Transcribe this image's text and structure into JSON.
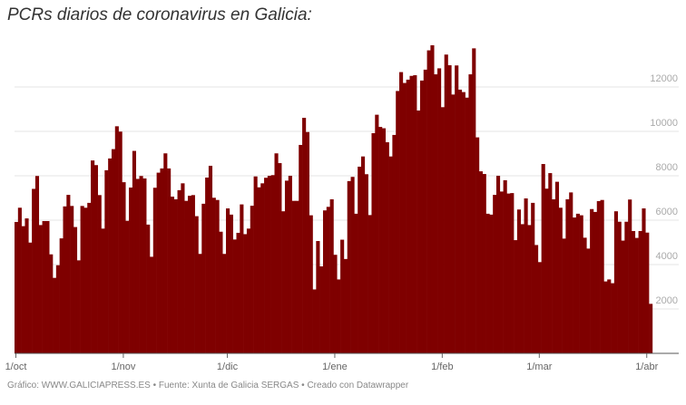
{
  "title": "PCRs diarios de coronavirus en Galicia:",
  "footer": "Gráfico: WWW.GALICIAPRESS.ES • Fuente: Xunta de Galicia SERGAS • Creado con Datawrapper",
  "colors": {
    "bar": "#7f0000",
    "grid": "#e6e6e6",
    "axis": "#666666",
    "ytick": "#aaaaaa"
  },
  "chart_data": {
    "type": "bar",
    "title": "PCRs diarios de coronavirus en Galicia:",
    "xlabel": "",
    "ylabel": "",
    "ylim": [
      0,
      14000
    ],
    "grid": true,
    "y_axis_side": "right",
    "yticks": [
      2000,
      4000,
      6000,
      8000,
      10000,
      12000
    ],
    "xtick_labels": [
      "1/oct",
      "1/nov",
      "1/dic",
      "1/ene",
      "1/feb",
      "1/mar",
      "1/abr"
    ],
    "months": [
      {
        "label": "oct",
        "values": [
          5920,
          6560,
          5730,
          6080,
          4990,
          7410,
          7990,
          5780,
          5960,
          5960,
          4460,
          3400,
          3970,
          5180,
          6620,
          7140,
          6640,
          5690,
          4190,
          6640,
          6560,
          6780,
          8690,
          8480,
          7130,
          5620,
          8250,
          8780,
          9200,
          10230,
          9990
        ]
      },
      {
        "label": "nov",
        "values": [
          7710,
          5970,
          7470,
          9120,
          7860,
          7990,
          7880,
          5800,
          4350,
          7460,
          8140,
          8330,
          9010,
          8330,
          7060,
          6940,
          7350,
          7660,
          6870,
          7100,
          7130,
          6180,
          4480,
          6740,
          7920,
          8450,
          7010,
          6910,
          5480,
          4480
        ]
      },
      {
        "label": "dic",
        "values": [
          6530,
          6250,
          5130,
          5430,
          6710,
          5370,
          5620,
          6650,
          7970,
          7480,
          7660,
          7910,
          8000,
          8030,
          9010,
          8570,
          6400,
          7780,
          8000,
          6870,
          6870,
          9390,
          10610,
          9970,
          6220,
          2880,
          5060,
          3920,
          6440,
          6600,
          6940
        ]
      },
      {
        "label": "ene",
        "values": [
          4440,
          3330,
          5120,
          4250,
          7760,
          7950,
          6290,
          8410,
          8870,
          8070,
          6230,
          9920,
          10750,
          10200,
          10140,
          9510,
          8870,
          9840,
          11820,
          12670,
          12180,
          12330,
          12500,
          12530,
          10940,
          12290,
          12780,
          13650,
          13880,
          12570,
          12840
        ]
      },
      {
        "label": "feb",
        "values": [
          11090,
          13460,
          12980,
          11660,
          12970,
          11880,
          11770,
          11520,
          12570,
          13740,
          9730,
          8200,
          8080,
          6290,
          6250,
          7140,
          8000,
          7290,
          7800,
          7200,
          7220,
          5100,
          6480,
          5820,
          6980,
          5780,
          6780,
          4880
        ]
      },
      {
        "label": "mar",
        "values": [
          4110,
          8530,
          7420,
          8120,
          6940,
          7730,
          6560,
          5170,
          6940,
          7250,
          6120,
          6290,
          6220,
          5210,
          4720,
          6500,
          6370,
          6860,
          6910,
          3240,
          3330,
          3160,
          6400,
          5930,
          5080,
          5930,
          6930,
          5510,
          5200,
          5510,
          6530
        ]
      },
      {
        "label": "abr",
        "values": [
          5440,
          2230
        ]
      }
    ]
  }
}
